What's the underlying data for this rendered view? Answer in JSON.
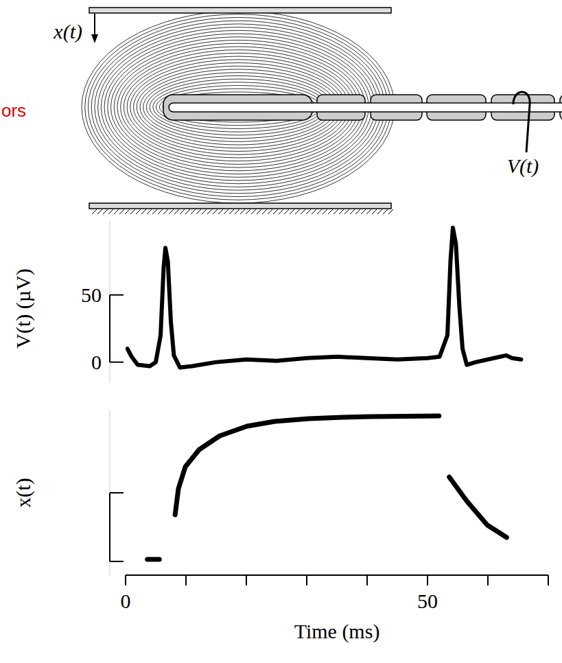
{
  "diagram": {
    "displacement_label": "x(t)",
    "voltage_label": "V(t)",
    "label": "ors"
  },
  "chart_data": [
    {
      "type": "line",
      "y_label": "V(t) (µV)",
      "color": "#000000",
      "x": [
        0.3,
        1,
        2,
        4,
        5,
        5.8,
        6.3,
        6.6,
        7.0,
        7.5,
        8.0,
        9,
        11,
        15,
        20,
        25,
        30,
        35,
        40,
        45,
        50,
        52,
        53.3,
        53.8,
        54.2,
        54.7,
        55.3,
        55.8,
        56.5,
        58,
        61,
        63,
        64,
        65.5
      ],
      "values": [
        10,
        4,
        -2,
        -3,
        0,
        20,
        70,
        85,
        75,
        30,
        5,
        -4,
        -3,
        0,
        2,
        1,
        3,
        4,
        3,
        2,
        3,
        4,
        20,
        75,
        100,
        88,
        40,
        10,
        -2,
        0,
        3,
        5,
        3,
        2
      ],
      "xlim": [
        0,
        70
      ],
      "ylim": [
        -15,
        105
      ],
      "yticks": [
        0,
        50
      ],
      "tick_labels": "y"
    },
    {
      "type": "line",
      "x_label": "Time (ms)",
      "y_label": "x(t)",
      "color": "#000000",
      "x": [
        3.6,
        5.6,
        7.0,
        8.2,
        8.75,
        9.9,
        12.2,
        15.6,
        20.1,
        24.7,
        30.3,
        36.0,
        40.6,
        51.9,
        52.8,
        53.6,
        56.5,
        59.9,
        63.1
      ],
      "values": [
        0.03,
        0.03,
        null,
        0.68,
        1.06,
        1.38,
        1.63,
        1.83,
        1.97,
        2.04,
        2.08,
        2.1,
        2.11,
        2.12,
        null,
        1.23,
        0.88,
        0.53,
        0.35
      ],
      "xlim": [
        0,
        70
      ],
      "ylim": [
        -0.2,
        2.2
      ],
      "xticks": [
        0,
        {
          "value": 10,
          "label": null
        },
        {
          "value": 20,
          "label": null
        },
        {
          "value": 30,
          "label": null
        },
        {
          "value": 40,
          "label": null
        },
        50,
        {
          "value": 60,
          "label": null
        },
        {
          "value": 70,
          "label": null
        }
      ],
      "yticks": [
        0,
        1
      ],
      "tick_labels": "x"
    }
  ]
}
